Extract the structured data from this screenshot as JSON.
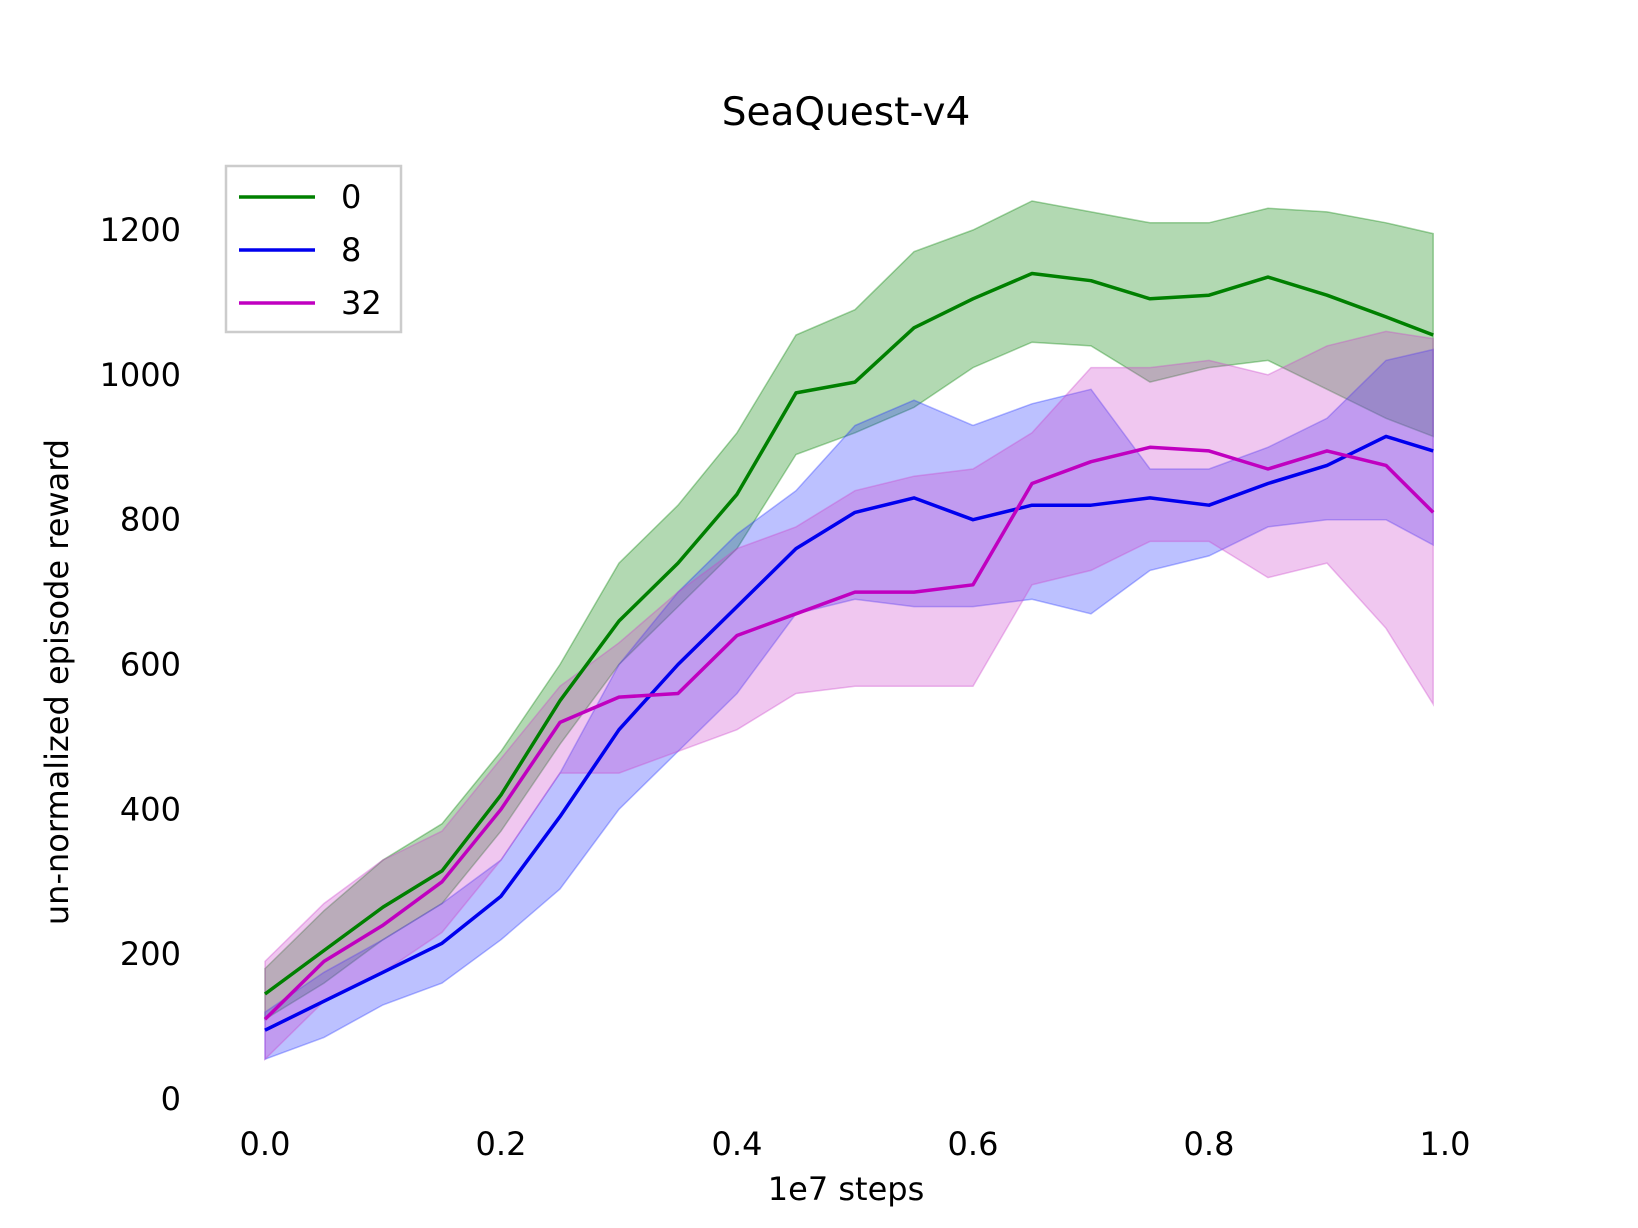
{
  "chart_data": {
    "type": "line",
    "title": "SeaQuest-v4",
    "xlabel": "1e7 steps",
    "ylabel": "un-normalized episode reward",
    "xlim": [
      -0.04,
      1.04
    ],
    "ylim": [
      0,
      1300
    ],
    "x_ticks": [
      0.0,
      0.2,
      0.4,
      0.6,
      0.8,
      1.0
    ],
    "x_tick_labels": [
      "0.0",
      "0.2",
      "0.4",
      "0.6",
      "0.8",
      "1.0"
    ],
    "y_ticks": [
      0,
      200,
      400,
      600,
      800,
      1000,
      1200
    ],
    "y_tick_labels": [
      "0",
      "200",
      "400",
      "600",
      "800",
      "1000",
      "1200"
    ],
    "grid": false,
    "legend_position": "top-left",
    "x": [
      0.0,
      0.05,
      0.1,
      0.15,
      0.2,
      0.25,
      0.3,
      0.35,
      0.4,
      0.45,
      0.5,
      0.55,
      0.6,
      0.65,
      0.7,
      0.75,
      0.8,
      0.85,
      0.9,
      0.95,
      0.99
    ],
    "series": [
      {
        "name": "0",
        "color": "#008000",
        "fill": "#008000",
        "mean": [
          145,
          205,
          265,
          315,
          420,
          550,
          660,
          740,
          835,
          975,
          990,
          1065,
          1105,
          1140,
          1130,
          1105,
          1110,
          1135,
          1110,
          1080,
          1055
        ],
        "upper": [
          180,
          260,
          330,
          380,
          480,
          600,
          740,
          820,
          920,
          1055,
          1090,
          1170,
          1200,
          1240,
          1225,
          1210,
          1210,
          1230,
          1225,
          1210,
          1195
        ],
        "lower": [
          110,
          160,
          220,
          270,
          370,
          490,
          600,
          680,
          760,
          890,
          920,
          955,
          1010,
          1045,
          1040,
          990,
          1010,
          1020,
          980,
          940,
          915
        ]
      },
      {
        "name": "8",
        "color": "#0000ee",
        "fill": "#2233ff",
        "mean": [
          95,
          135,
          175,
          215,
          280,
          390,
          510,
          600,
          680,
          760,
          810,
          830,
          800,
          820,
          820,
          830,
          820,
          850,
          875,
          915,
          895
        ],
        "upper": [
          120,
          175,
          220,
          270,
          330,
          450,
          600,
          700,
          780,
          840,
          930,
          965,
          930,
          960,
          980,
          870,
          870,
          900,
          940,
          1020,
          1035
        ],
        "lower": [
          55,
          85,
          130,
          160,
          220,
          290,
          400,
          480,
          560,
          670,
          690,
          680,
          680,
          690,
          670,
          730,
          750,
          790,
          800,
          800,
          765
        ]
      },
      {
        "name": "32",
        "color": "#c000c0",
        "fill": "#cc44cc",
        "mean": [
          110,
          190,
          240,
          300,
          400,
          520,
          555,
          560,
          640,
          670,
          700,
          700,
          710,
          850,
          880,
          900,
          895,
          870,
          895,
          875,
          810
        ],
        "upper": [
          190,
          270,
          330,
          370,
          470,
          570,
          630,
          700,
          760,
          790,
          840,
          860,
          870,
          920,
          1010,
          1010,
          1020,
          1000,
          1040,
          1060,
          1050
        ],
        "lower": [
          55,
          135,
          175,
          230,
          330,
          450,
          450,
          480,
          510,
          560,
          570,
          570,
          570,
          710,
          730,
          770,
          770,
          720,
          740,
          650,
          545
        ]
      }
    ]
  }
}
